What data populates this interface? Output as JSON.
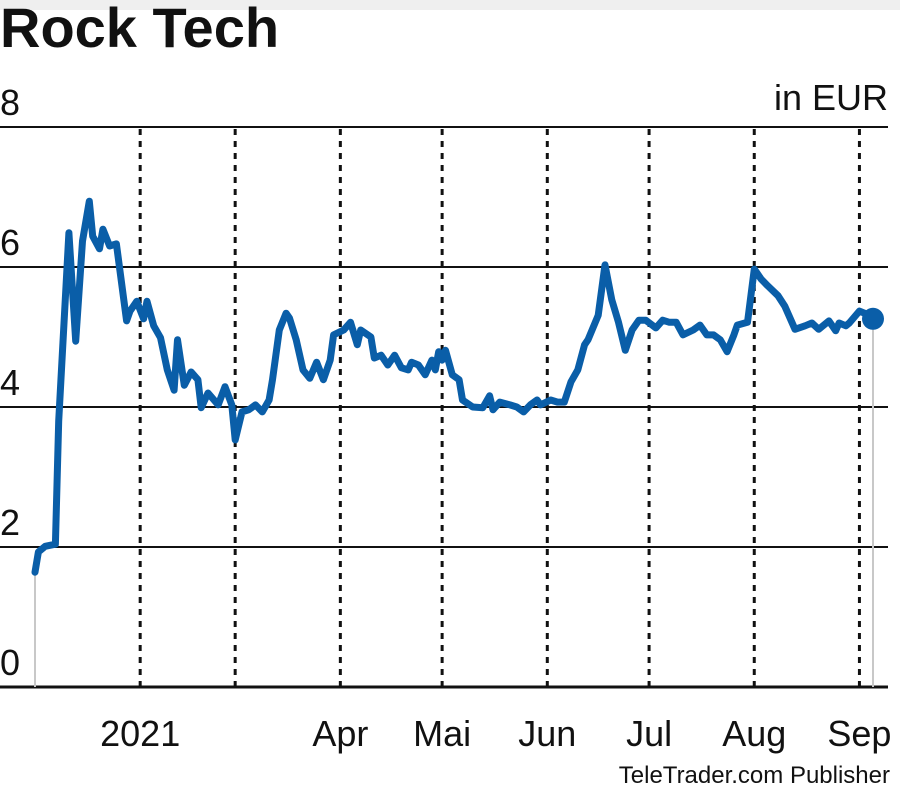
{
  "chart_data": {
    "type": "line",
    "title": "Rock Tech",
    "unit_label": "in EUR",
    "source": "TeleTrader.com Publisher",
    "ylim": [
      0,
      8
    ],
    "yticks": [
      0,
      2,
      4,
      6,
      8
    ],
    "xlim": [
      "2021-01-01",
      "2021-09-05"
    ],
    "xticks": [
      {
        "date": "2021-02-01",
        "label": "2021"
      },
      {
        "date": "2021-04-01",
        "label": "Apr"
      },
      {
        "date": "2021-05-01",
        "label": "Mai"
      },
      {
        "date": "2021-06-01",
        "label": "Jun"
      },
      {
        "date": "2021-07-01",
        "label": "Jul"
      },
      {
        "date": "2021-08-01",
        "label": "Aug"
      },
      {
        "date": "2021-09-01",
        "label": "Sep"
      }
    ],
    "vgrid_dates": [
      "2021-02-01",
      "2021-03-01",
      "2021-04-01",
      "2021-05-01",
      "2021-06-01",
      "2021-07-01",
      "2021-08-01",
      "2021-09-01"
    ],
    "grid": {
      "horizontal": "solid",
      "vertical": "dashed"
    },
    "colors": {
      "line": "#0a5ea8",
      "grid": "#111111",
      "drop_line": "#c8c8c8"
    },
    "series": [
      {
        "points": [
          [
            "2021-01-01",
            1.64
          ],
          [
            "2021-01-02",
            1.93
          ],
          [
            "2021-01-04",
            2.01
          ],
          [
            "2021-01-07",
            2.04
          ],
          [
            "2021-01-08",
            3.8
          ],
          [
            "2021-01-11",
            6.49
          ],
          [
            "2021-01-13",
            4.94
          ],
          [
            "2021-01-15",
            6.37
          ],
          [
            "2021-01-17",
            6.94
          ],
          [
            "2021-01-18",
            6.44
          ],
          [
            "2021-01-20",
            6.26
          ],
          [
            "2021-01-21",
            6.54
          ],
          [
            "2021-01-23",
            6.3
          ],
          [
            "2021-01-25",
            6.33
          ],
          [
            "2021-01-28",
            5.23
          ],
          [
            "2021-01-29",
            5.37
          ],
          [
            "2021-01-31",
            5.51
          ],
          [
            "2021-02-02",
            5.26
          ],
          [
            "2021-02-03",
            5.51
          ],
          [
            "2021-02-05",
            5.16
          ],
          [
            "2021-02-07",
            4.99
          ],
          [
            "2021-02-09",
            4.53
          ],
          [
            "2021-02-11",
            4.24
          ],
          [
            "2021-02-12",
            4.96
          ],
          [
            "2021-02-14",
            4.31
          ],
          [
            "2021-02-16",
            4.5
          ],
          [
            "2021-02-18",
            4.39
          ],
          [
            "2021-02-19",
            3.99
          ],
          [
            "2021-02-21",
            4.2
          ],
          [
            "2021-02-24",
            4.03
          ],
          [
            "2021-02-26",
            4.29
          ],
          [
            "2021-02-28",
            4.03
          ],
          [
            "2021-03-01",
            3.53
          ],
          [
            "2021-03-03",
            3.93
          ],
          [
            "2021-03-05",
            3.96
          ],
          [
            "2021-03-07",
            4.03
          ],
          [
            "2021-03-09",
            3.93
          ],
          [
            "2021-03-11",
            4.1
          ],
          [
            "2021-03-12",
            4.39
          ],
          [
            "2021-03-14",
            5.1
          ],
          [
            "2021-03-16",
            5.34
          ],
          [
            "2021-03-17",
            5.27
          ],
          [
            "2021-03-19",
            4.96
          ],
          [
            "2021-03-21",
            4.53
          ],
          [
            "2021-03-23",
            4.41
          ],
          [
            "2021-03-25",
            4.64
          ],
          [
            "2021-03-27",
            4.39
          ],
          [
            "2021-03-29",
            4.67
          ],
          [
            "2021-03-30",
            5.03
          ],
          [
            "2021-04-02",
            5.1
          ],
          [
            "2021-04-04",
            5.21
          ],
          [
            "2021-04-06",
            4.89
          ],
          [
            "2021-04-07",
            5.1
          ],
          [
            "2021-04-10",
            5.0
          ],
          [
            "2021-04-11",
            4.7
          ],
          [
            "2021-04-13",
            4.74
          ],
          [
            "2021-04-15",
            4.6
          ],
          [
            "2021-04-17",
            4.74
          ],
          [
            "2021-04-19",
            4.56
          ],
          [
            "2021-04-21",
            4.53
          ],
          [
            "2021-04-22",
            4.64
          ],
          [
            "2021-04-24",
            4.6
          ],
          [
            "2021-04-26",
            4.46
          ],
          [
            "2021-04-28",
            4.67
          ],
          [
            "2021-04-29",
            4.53
          ],
          [
            "2021-04-30",
            4.79
          ],
          [
            "2021-05-01",
            4.67
          ],
          [
            "2021-05-02",
            4.81
          ],
          [
            "2021-05-04",
            4.46
          ],
          [
            "2021-05-06",
            4.39
          ],
          [
            "2021-05-07",
            4.1
          ],
          [
            "2021-05-10",
            4.0
          ],
          [
            "2021-05-13",
            3.99
          ],
          [
            "2021-05-15",
            4.16
          ],
          [
            "2021-05-16",
            3.96
          ],
          [
            "2021-05-18",
            4.07
          ],
          [
            "2021-05-21",
            4.03
          ],
          [
            "2021-05-23",
            4.0
          ],
          [
            "2021-05-25",
            3.93
          ],
          [
            "2021-05-27",
            4.03
          ],
          [
            "2021-05-29",
            4.1
          ],
          [
            "2021-05-30",
            4.03
          ],
          [
            "2021-06-02",
            4.1
          ],
          [
            "2021-06-04",
            4.07
          ],
          [
            "2021-06-06",
            4.07
          ],
          [
            "2021-06-08",
            4.36
          ],
          [
            "2021-06-10",
            4.53
          ],
          [
            "2021-06-12",
            4.89
          ],
          [
            "2021-06-13",
            4.96
          ],
          [
            "2021-06-16",
            5.31
          ],
          [
            "2021-06-18",
            6.03
          ],
          [
            "2021-06-20",
            5.53
          ],
          [
            "2021-06-22",
            5.21
          ],
          [
            "2021-06-24",
            4.81
          ],
          [
            "2021-06-26",
            5.1
          ],
          [
            "2021-06-28",
            5.24
          ],
          [
            "2021-06-30",
            5.24
          ],
          [
            "2021-07-03",
            5.13
          ],
          [
            "2021-07-05",
            5.24
          ],
          [
            "2021-07-07",
            5.21
          ],
          [
            "2021-07-09",
            5.21
          ],
          [
            "2021-07-11",
            5.03
          ],
          [
            "2021-07-14",
            5.1
          ],
          [
            "2021-07-16",
            5.17
          ],
          [
            "2021-07-18",
            5.03
          ],
          [
            "2021-07-20",
            5.03
          ],
          [
            "2021-07-22",
            4.96
          ],
          [
            "2021-07-24",
            4.79
          ],
          [
            "2021-07-26",
            5.03
          ],
          [
            "2021-07-27",
            5.17
          ],
          [
            "2021-07-30",
            5.21
          ],
          [
            "2021-08-01",
            5.97
          ],
          [
            "2021-08-03",
            5.83
          ],
          [
            "2021-08-05",
            5.73
          ],
          [
            "2021-08-08",
            5.59
          ],
          [
            "2021-08-10",
            5.44
          ],
          [
            "2021-08-13",
            5.11
          ],
          [
            "2021-08-16",
            5.16
          ],
          [
            "2021-08-18",
            5.2
          ],
          [
            "2021-08-20",
            5.11
          ],
          [
            "2021-08-23",
            5.23
          ],
          [
            "2021-08-25",
            5.09
          ],
          [
            "2021-08-26",
            5.2
          ],
          [
            "2021-08-28",
            5.16
          ],
          [
            "2021-08-29",
            5.2
          ],
          [
            "2021-09-01",
            5.37
          ],
          [
            "2021-09-03",
            5.33
          ],
          [
            "2021-09-05",
            5.26
          ]
        ]
      }
    ]
  }
}
